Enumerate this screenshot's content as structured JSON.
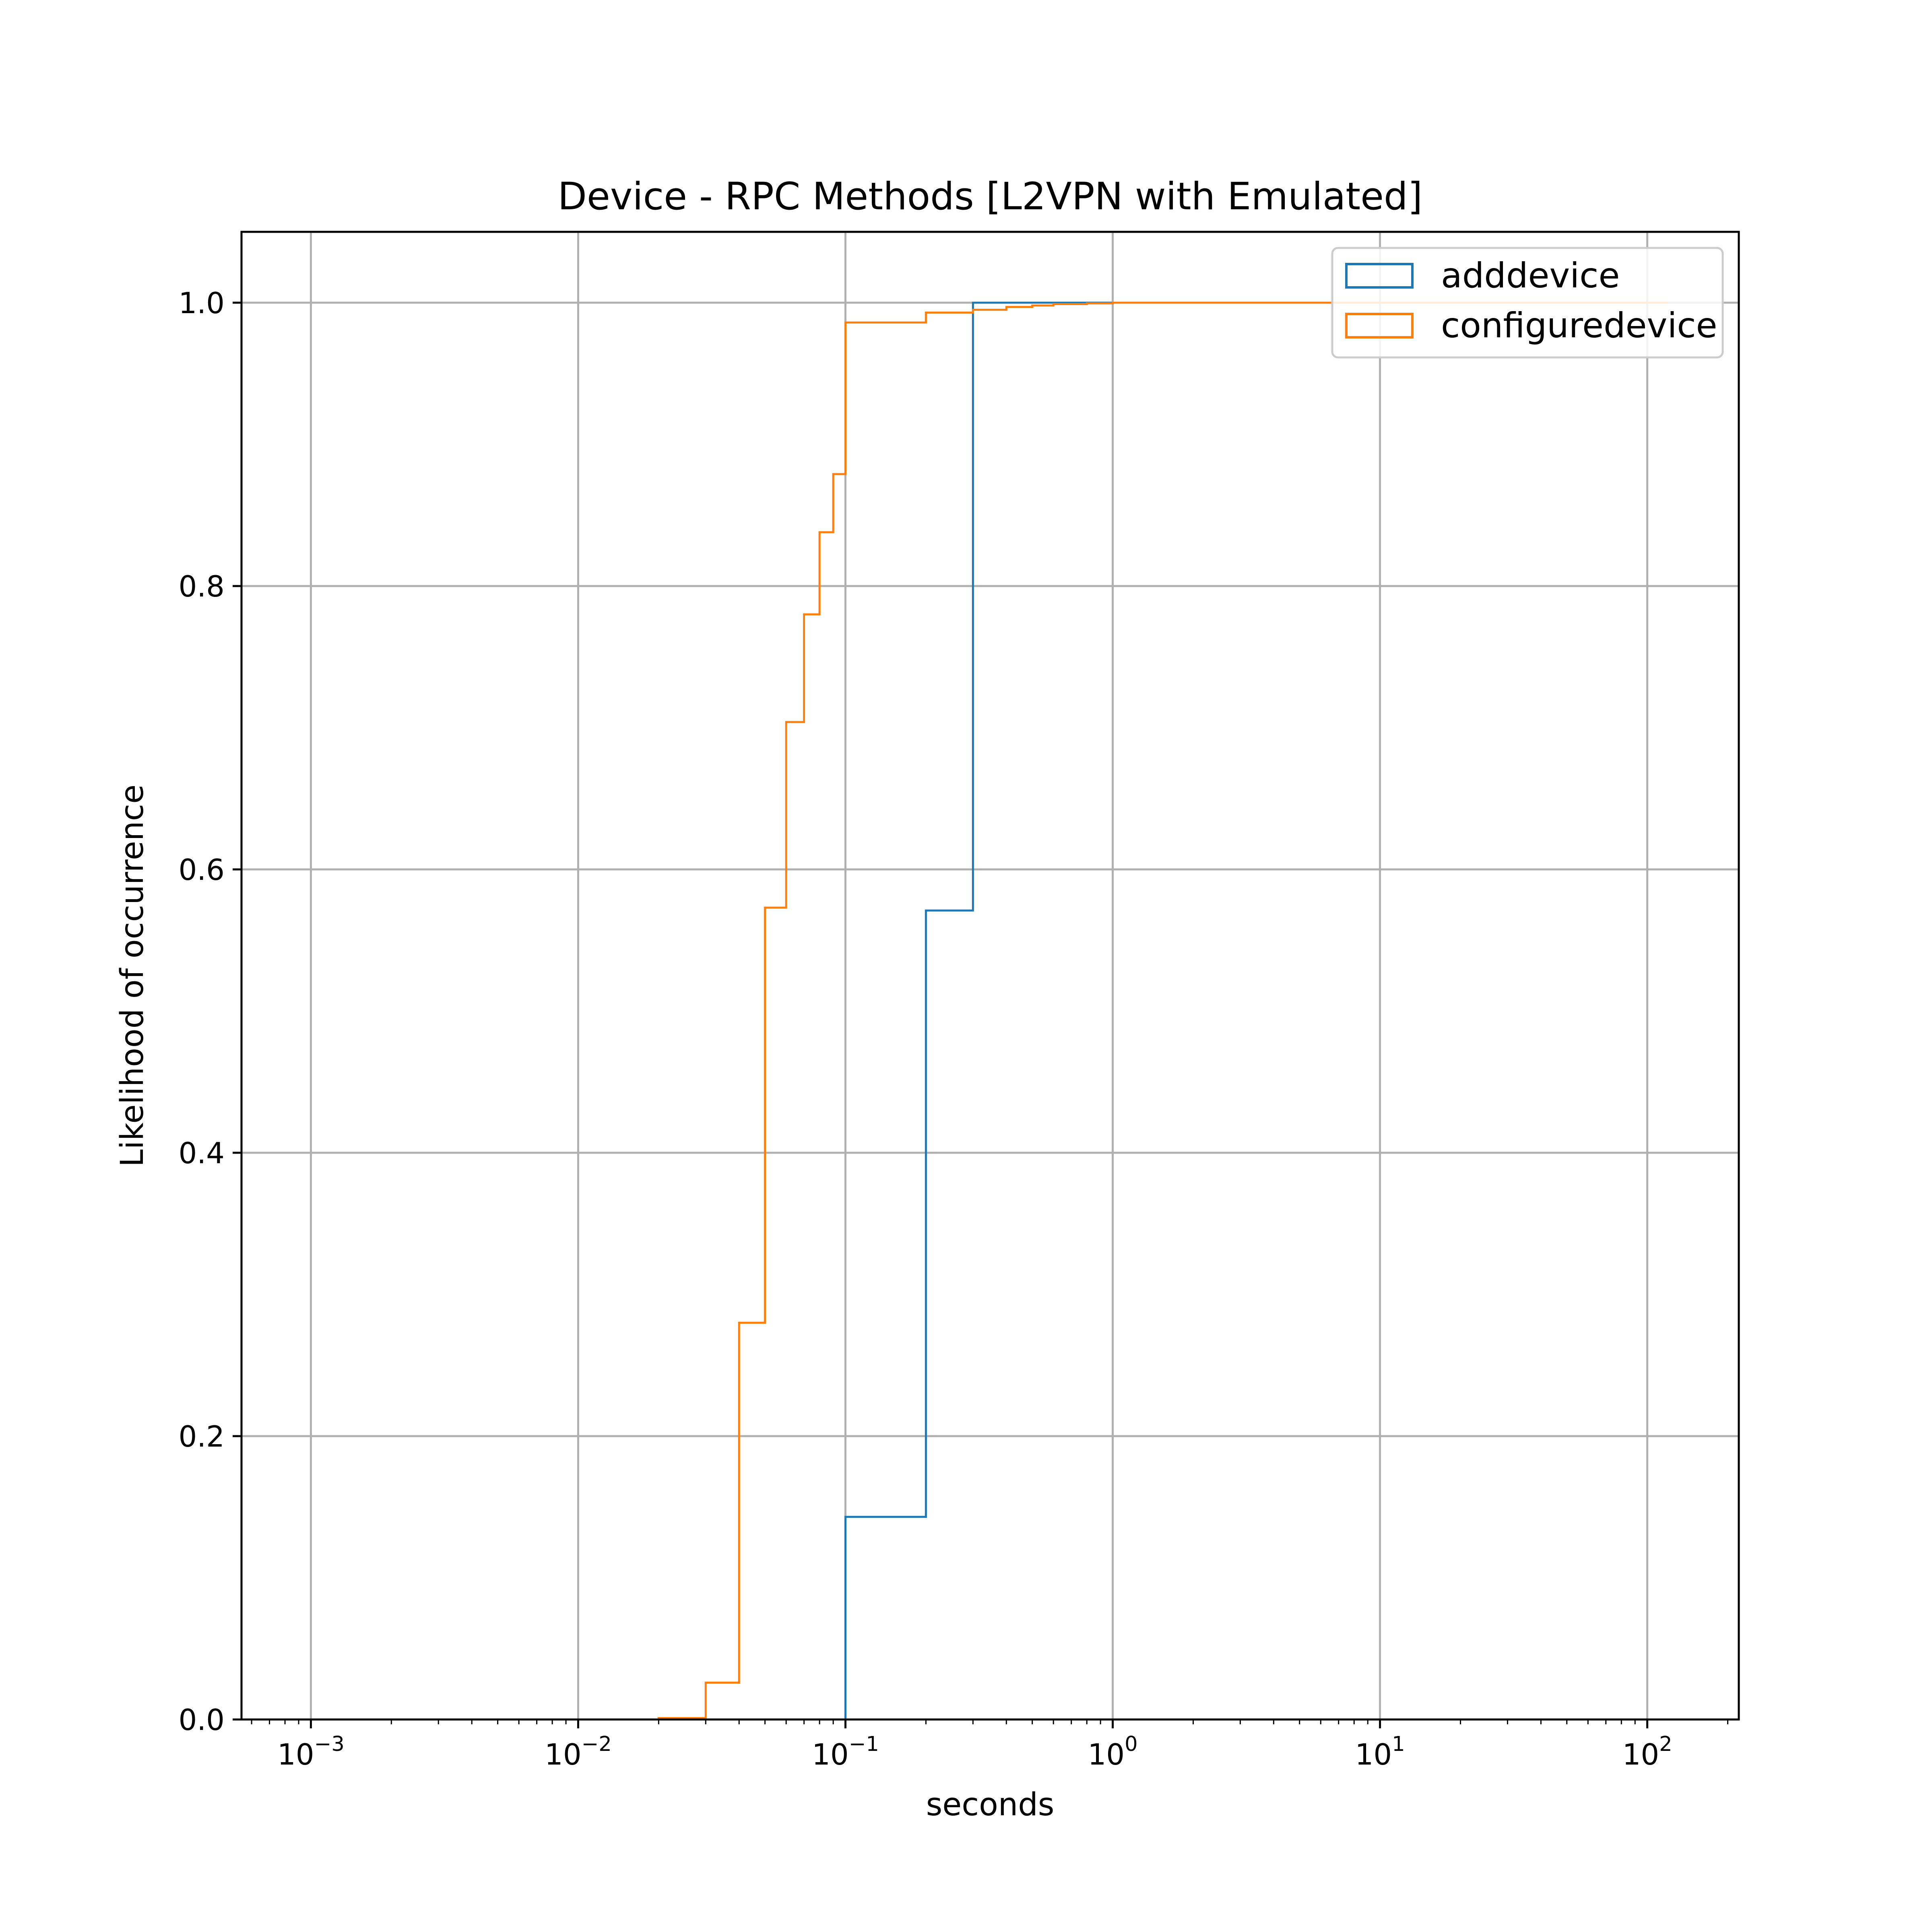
{
  "chart_data": {
    "type": "line",
    "subtype": "step-cdf",
    "title": "Device - RPC Methods [L2VPN with Emulated]",
    "xlabel": "seconds",
    "ylabel": "Likelihood of occurrence",
    "xscale": "log",
    "xlim": [
      0.00055,
      220
    ],
    "ylim": [
      0,
      1.05
    ],
    "x_ticks": [
      {
        "value": 0.001,
        "base": "10",
        "exp": "−3"
      },
      {
        "value": 0.01,
        "base": "10",
        "exp": "−2"
      },
      {
        "value": 0.1,
        "base": "10",
        "exp": "−1"
      },
      {
        "value": 1,
        "base": "10",
        "exp": "0"
      },
      {
        "value": 10,
        "base": "10",
        "exp": "1"
      },
      {
        "value": 100,
        "base": "10",
        "exp": "2"
      }
    ],
    "y_ticks": [
      {
        "value": 0.0,
        "label": "0.0"
      },
      {
        "value": 0.2,
        "label": "0.2"
      },
      {
        "value": 0.4,
        "label": "0.4"
      },
      {
        "value": 0.6,
        "label": "0.6"
      },
      {
        "value": 0.8,
        "label": "0.8"
      },
      {
        "value": 1.0,
        "label": "1.0"
      }
    ],
    "grid": true,
    "legend_position": "upper right",
    "series": [
      {
        "name": "adddevice",
        "color": "#1f77b4",
        "x": [
          0.00058,
          0.1,
          0.2,
          0.3,
          0.4,
          0.5,
          1.0,
          2.0,
          10,
          50,
          120
        ],
        "y": [
          0.0,
          0.143,
          0.571,
          1.0,
          1.0,
          1.0,
          1.0,
          1.0,
          1.0,
          1.0,
          1.0
        ]
      },
      {
        "name": "configuredevice",
        "color": "#ff7f0e",
        "x": [
          0.00058,
          0.02,
          0.03,
          0.04,
          0.05,
          0.06,
          0.07,
          0.08,
          0.09,
          0.1,
          0.2,
          0.3,
          0.4,
          0.5,
          0.6,
          0.8,
          1.0,
          2.0,
          10,
          120
        ],
        "y": [
          0.0,
          0.001,
          0.026,
          0.28,
          0.573,
          0.704,
          0.78,
          0.838,
          0.879,
          0.986,
          0.993,
          0.995,
          0.997,
          0.998,
          0.999,
          0.9995,
          1.0,
          1.0,
          1.0,
          1.0
        ]
      }
    ]
  }
}
